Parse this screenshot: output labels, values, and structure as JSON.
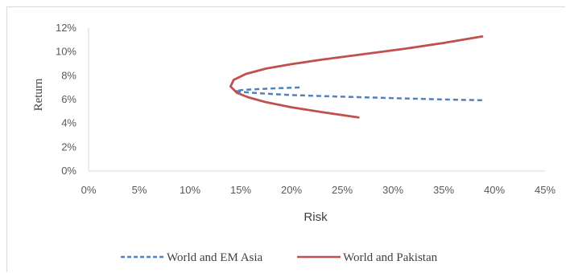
{
  "chart_data": {
    "type": "line",
    "title": "",
    "xlabel": "Risk",
    "ylabel": "Return",
    "xlim": [
      0,
      45
    ],
    "ylim": [
      0,
      12
    ],
    "x_ticks": [
      "0%",
      "5%",
      "10%",
      "15%",
      "20%",
      "25%",
      "30%",
      "35%",
      "40%",
      "45%"
    ],
    "y_ticks": [
      "0%",
      "2%",
      "4%",
      "6%",
      "8%",
      "10%",
      "12%"
    ],
    "grid": false,
    "legend_position": "bottom",
    "series": [
      {
        "name": "World and EM Asia",
        "color": "#4f81bd",
        "style": "dashed",
        "x": [
          20.8,
          18.5,
          16.5,
          15.1,
          14.5,
          15.0,
          17.0,
          20.0,
          25.0,
          30.0,
          35.0,
          38.9
        ],
        "y": [
          7.02,
          6.95,
          6.87,
          6.8,
          6.73,
          6.65,
          6.52,
          6.38,
          6.24,
          6.12,
          6.01,
          5.94
        ]
      },
      {
        "name": "World and Pakistan",
        "color": "#c0504d",
        "style": "solid",
        "x": [
          26.6,
          23.0,
          20.0,
          17.5,
          15.7,
          14.6,
          14.0,
          14.3,
          15.5,
          17.5,
          20.0,
          23.0,
          27.0,
          31.0,
          35.0,
          38.8
        ],
        "y": [
          4.5,
          4.95,
          5.35,
          5.78,
          6.2,
          6.58,
          7.1,
          7.65,
          8.15,
          8.6,
          8.97,
          9.35,
          9.8,
          10.25,
          10.75,
          11.3
        ]
      }
    ]
  }
}
